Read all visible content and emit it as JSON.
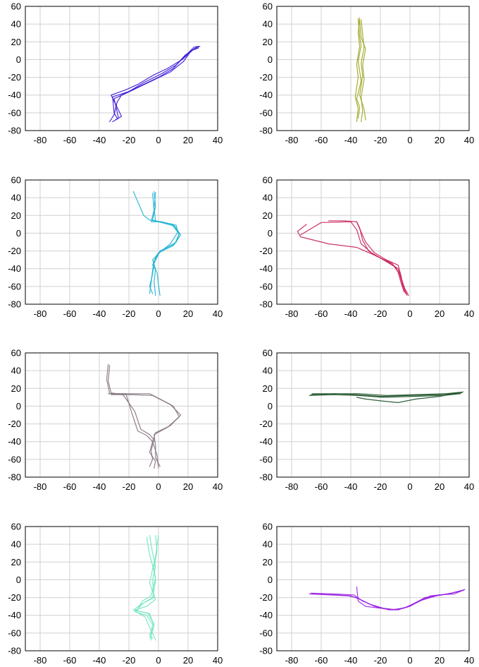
{
  "chart_data": [
    {
      "type": "line",
      "series": [
        {
          "name": "",
          "color": "#3b14d6",
          "x": [
            -33,
            -30,
            -28,
            -25,
            -20,
            -10,
            0,
            10,
            18,
            26
          ],
          "y": [
            -70,
            -62,
            -48,
            -40,
            -36,
            -28,
            -20,
            -10,
            5,
            14
          ]
        },
        {
          "name": "",
          "color": "#3b14d6",
          "x": [
            -31,
            -27,
            -30,
            -22,
            -12,
            -2,
            8,
            17,
            22,
            27
          ],
          "y": [
            -70,
            -66,
            -44,
            -38,
            -30,
            -22,
            -14,
            -2,
            10,
            13
          ]
        },
        {
          "name": "",
          "color": "#3b14d6",
          "x": [
            -29,
            -25,
            -32,
            -22,
            -14,
            -4,
            6,
            16,
            24,
            28
          ],
          "y": [
            -68,
            -64,
            -40,
            -34,
            -28,
            -18,
            -10,
            0,
            12,
            15
          ]
        },
        {
          "name": "",
          "color": "#3b14d6",
          "x": [
            -28,
            -30,
            -31,
            -20,
            -10,
            2,
            12,
            18,
            24,
            27
          ],
          "y": [
            -66,
            -60,
            -42,
            -36,
            -26,
            -16,
            -6,
            4,
            14,
            15
          ]
        }
      ],
      "xlim": [
        -90,
        40
      ],
      "ylim": [
        -80,
        60
      ],
      "xticks": [
        -80,
        -60,
        -40,
        -20,
        0,
        20,
        40
      ],
      "yticks": [
        60,
        40,
        20,
        0,
        -20,
        -40,
        -60,
        -80
      ],
      "grid": true
    },
    {
      "type": "line",
      "series": [
        {
          "name": "",
          "color": "#9aa51e",
          "x": [
            -34,
            -35,
            -34,
            -36,
            -35,
            -37,
            -35,
            -36
          ],
          "y": [
            47,
            30,
            15,
            -5,
            -20,
            -42,
            -55,
            -70
          ]
        },
        {
          "name": "",
          "color": "#9aa51e",
          "x": [
            -33,
            -32,
            -31,
            -33,
            -32,
            -34,
            -31,
            -30
          ],
          "y": [
            45,
            28,
            14,
            -4,
            -18,
            -40,
            -56,
            -68
          ]
        },
        {
          "name": "",
          "color": "#9aa51e",
          "x": [
            -34,
            -33,
            -30,
            -32,
            -31,
            -33,
            -32,
            -33
          ],
          "y": [
            44,
            25,
            12,
            -6,
            -22,
            -42,
            -58,
            -70
          ]
        },
        {
          "name": "",
          "color": "#9aa51e",
          "x": [
            -35,
            -34,
            -33,
            -35,
            -33,
            -36,
            -34,
            -35
          ],
          "y": [
            46,
            26,
            16,
            -2,
            -24,
            -44,
            -54,
            -66
          ]
        }
      ],
      "xlim": [
        -90,
        40
      ],
      "ylim": [
        -80,
        60
      ],
      "xticks": [
        -80,
        -60,
        -40,
        -20,
        0,
        20,
        40
      ],
      "yticks": [
        60,
        40,
        20,
        0,
        -20,
        -40,
        -60,
        -80
      ],
      "grid": true
    },
    {
      "type": "line",
      "series": [
        {
          "name": "",
          "color": "#1fb1d3",
          "x": [
            -3,
            -2,
            -4,
            0,
            10,
            14,
            12,
            2,
            -4,
            -2,
            -3,
            -2
          ],
          "y": [
            47,
            30,
            15,
            13,
            10,
            0,
            -10,
            -20,
            -30,
            -40,
            -55,
            -70
          ]
        },
        {
          "name": "",
          "color": "#1fb1d3",
          "x": [
            -17,
            -10,
            -6,
            2,
            11,
            15,
            10,
            0,
            -3,
            -4,
            -5,
            -6
          ],
          "y": [
            47,
            20,
            15,
            12,
            8,
            -2,
            -14,
            -22,
            -32,
            -42,
            -56,
            -68
          ]
        },
        {
          "name": "",
          "color": "#1fb1d3",
          "x": [
            -2,
            -3,
            -2,
            4,
            12,
            13,
            8,
            -1,
            -4,
            -1,
            0,
            1
          ],
          "y": [
            46,
            28,
            14,
            12,
            9,
            1,
            -12,
            -24,
            -36,
            -44,
            -58,
            -70
          ]
        },
        {
          "name": "",
          "color": "#1fb1d3",
          "x": [
            -4,
            -3,
            -5,
            2,
            9,
            14,
            11,
            1,
            -3,
            -4,
            -6,
            -4
          ],
          "y": [
            45,
            26,
            13,
            13,
            10,
            -1,
            -12,
            -20,
            -34,
            -46,
            -60,
            -68
          ]
        }
      ],
      "xlim": [
        -90,
        40
      ],
      "ylim": [
        -80,
        60
      ],
      "xticks": [
        -80,
        -60,
        -40,
        -20,
        0,
        20,
        40
      ],
      "yticks": [
        60,
        40,
        20,
        0,
        -20,
        -40,
        -60,
        -80
      ],
      "grid": true
    },
    {
      "type": "line",
      "series": [
        {
          "name": "",
          "color": "#c8205c",
          "x": [
            -70,
            -76,
            -74,
            -55,
            -36,
            -25,
            -15,
            -8,
            -6,
            -4,
            -2
          ],
          "y": [
            10,
            2,
            -4,
            -12,
            -16,
            -24,
            -32,
            -40,
            -50,
            -60,
            -70
          ]
        },
        {
          "name": "",
          "color": "#c8205c",
          "x": [
            -36,
            -34,
            -30,
            -24,
            -16,
            -8,
            -6,
            -5,
            -3
          ],
          "y": [
            13,
            5,
            -10,
            -22,
            -30,
            -36,
            -48,
            -58,
            -68
          ]
        },
        {
          "name": "",
          "color": "#c8205c",
          "x": [
            -55,
            -45,
            -36,
            -34,
            -32,
            -28,
            -20,
            -12,
            -8,
            -6,
            -4
          ],
          "y": [
            14,
            14,
            13,
            6,
            -8,
            -20,
            -28,
            -34,
            -44,
            -56,
            -66
          ]
        },
        {
          "name": "",
          "color": "#c8205c",
          "x": [
            -74,
            -60,
            -40,
            -36,
            -33,
            -26,
            -18,
            -10,
            -7,
            -5,
            -1
          ],
          "y": [
            -2,
            12,
            13,
            4,
            -12,
            -22,
            -30,
            -38,
            -46,
            -58,
            -70
          ]
        }
      ],
      "xlim": [
        -90,
        40
      ],
      "ylim": [
        -80,
        60
      ],
      "xticks": [
        -80,
        -60,
        -40,
        -20,
        0,
        20,
        40
      ],
      "yticks": [
        60,
        40,
        20,
        0,
        -20,
        -40,
        -60,
        -80
      ],
      "grid": true
    },
    {
      "type": "line",
      "series": [
        {
          "name": "",
          "color": "#85737f",
          "x": [
            -34,
            -35,
            -33,
            -22,
            -18,
            -14,
            -8,
            -4,
            -6,
            -2,
            -3
          ],
          "y": [
            47,
            30,
            14,
            14,
            -8,
            -28,
            -33,
            -40,
            -52,
            -62,
            -70
          ]
        },
        {
          "name": "",
          "color": "#85737f",
          "x": [
            -34,
            -20,
            -6,
            8,
            15,
            8,
            -2,
            -4,
            -1,
            0
          ],
          "y": [
            14,
            14,
            14,
            2,
            -10,
            -22,
            -30,
            -40,
            -55,
            -70
          ]
        },
        {
          "name": "",
          "color": "#85737f",
          "x": [
            -33,
            -34,
            -32,
            -24,
            -16,
            -12,
            -6,
            -3,
            -5,
            -4,
            -6
          ],
          "y": [
            46,
            28,
            15,
            13,
            -6,
            -26,
            -32,
            -38,
            -50,
            -60,
            -68
          ]
        },
        {
          "name": "",
          "color": "#85737f",
          "x": [
            -32,
            -18,
            -4,
            10,
            14,
            6,
            -3,
            -2,
            -2,
            1
          ],
          "y": [
            13,
            13,
            12,
            0,
            -12,
            -24,
            -32,
            -44,
            -58,
            -68
          ]
        }
      ],
      "xlim": [
        -90,
        40
      ],
      "ylim": [
        -80,
        60
      ],
      "xticks": [
        -80,
        -60,
        -40,
        -20,
        0,
        20,
        40
      ],
      "yticks": [
        60,
        40,
        20,
        0,
        -20,
        -40,
        -60,
        -80
      ],
      "grid": true
    },
    {
      "type": "line",
      "series": [
        {
          "name": "",
          "color": "#1b4f26",
          "x": [
            -67,
            -50,
            -36,
            -20,
            0,
            20,
            35
          ],
          "y": [
            13,
            14,
            13,
            11,
            12,
            13,
            15
          ]
        },
        {
          "name": "",
          "color": "#1b4f26",
          "x": [
            -68,
            -52,
            -35,
            -18,
            2,
            22,
            34
          ],
          "y": [
            12,
            13,
            12,
            10,
            11,
            12,
            14
          ]
        },
        {
          "name": "",
          "color": "#1b4f26",
          "x": [
            -36,
            -30,
            -20,
            -8,
            4,
            20,
            33
          ],
          "y": [
            10,
            8,
            6,
            4,
            8,
            11,
            15
          ]
        },
        {
          "name": "",
          "color": "#1b4f26",
          "x": [
            -66,
            -48,
            -34,
            -16,
            4,
            24,
            36
          ],
          "y": [
            14,
            14,
            14,
            12,
            13,
            14,
            16
          ]
        }
      ],
      "xlim": [
        -90,
        40
      ],
      "ylim": [
        -80,
        60
      ],
      "xticks": [
        -80,
        -60,
        -40,
        -20,
        0,
        20,
        40
      ],
      "yticks": [
        60,
        40,
        20,
        0,
        -20,
        -40,
        -60,
        -80
      ],
      "grid": true
    },
    {
      "type": "line",
      "series": [
        {
          "name": "",
          "color": "#71e5c1",
          "x": [
            -6,
            -4,
            -2,
            -4,
            -3,
            -10,
            -16,
            -8,
            -4,
            -5,
            -5
          ],
          "y": [
            50,
            30,
            15,
            0,
            -20,
            -26,
            -36,
            -40,
            -50,
            -60,
            -68
          ]
        },
        {
          "name": "",
          "color": "#71e5c1",
          "x": [
            -2,
            -1,
            -3,
            -2,
            -4,
            -12,
            -17,
            -6,
            -3,
            -6,
            -4
          ],
          "y": [
            50,
            32,
            14,
            -2,
            -20,
            -28,
            -34,
            -38,
            -52,
            -62,
            -66
          ]
        },
        {
          "name": "",
          "color": "#71e5c1",
          "x": [
            -8,
            -6,
            -4,
            -2,
            -5,
            -11,
            -15,
            -9,
            -6,
            -3,
            -2
          ],
          "y": [
            48,
            28,
            16,
            2,
            -18,
            -24,
            -36,
            -42,
            -54,
            -64,
            -68
          ]
        },
        {
          "name": "",
          "color": "#71e5c1",
          "x": [
            0,
            -2,
            -4,
            -6,
            -2,
            -8,
            -16,
            -7,
            -3,
            -4,
            -6
          ],
          "y": [
            50,
            26,
            12,
            -4,
            -22,
            -30,
            -34,
            -38,
            -50,
            -58,
            -66
          ]
        }
      ],
      "xlim": [
        -90,
        40
      ],
      "ylim": [
        -80,
        60
      ],
      "xticks": [
        -80,
        -60,
        -40,
        -20,
        0,
        20,
        40
      ],
      "yticks": [
        60,
        40,
        20,
        0,
        -20,
        -40,
        -60,
        -80
      ],
      "grid": true
    },
    {
      "type": "line",
      "series": [
        {
          "name": "",
          "color": "#9b22e2",
          "x": [
            -68,
            -55,
            -42,
            -36,
            -28,
            -18,
            -8,
            2,
            14,
            26,
            37
          ],
          "y": [
            -16,
            -17,
            -18,
            -20,
            -27,
            -32,
            -34,
            -28,
            -18,
            -16,
            -11
          ]
        },
        {
          "name": "",
          "color": "#9b22e2",
          "x": [
            -66,
            -50,
            -40,
            -34,
            -24,
            -14,
            -4,
            6,
            18,
            28,
            36
          ],
          "y": [
            -16,
            -17,
            -18,
            -22,
            -30,
            -34,
            -32,
            -24,
            -18,
            -15,
            -12
          ]
        },
        {
          "name": "",
          "color": "#9b22e2",
          "x": [
            -36,
            -35,
            -30,
            -20,
            -10,
            0,
            10,
            22,
            34
          ],
          "y": [
            -8,
            -24,
            -30,
            -32,
            -34,
            -30,
            -20,
            -17,
            -13
          ]
        },
        {
          "name": "",
          "color": "#9b22e2",
          "x": [
            -67,
            -52,
            -38,
            -32,
            -22,
            -12,
            -2,
            8,
            20,
            30,
            37
          ],
          "y": [
            -15,
            -16,
            -17,
            -24,
            -31,
            -34,
            -31,
            -22,
            -17,
            -16,
            -11
          ]
        }
      ],
      "xlim": [
        -90,
        40
      ],
      "ylim": [
        -80,
        60
      ],
      "xticks": [
        -80,
        -60,
        -40,
        -20,
        0,
        20,
        40
      ],
      "yticks": [
        60,
        40,
        20,
        0,
        -20,
        -40,
        -60,
        -80
      ],
      "grid": true
    }
  ]
}
